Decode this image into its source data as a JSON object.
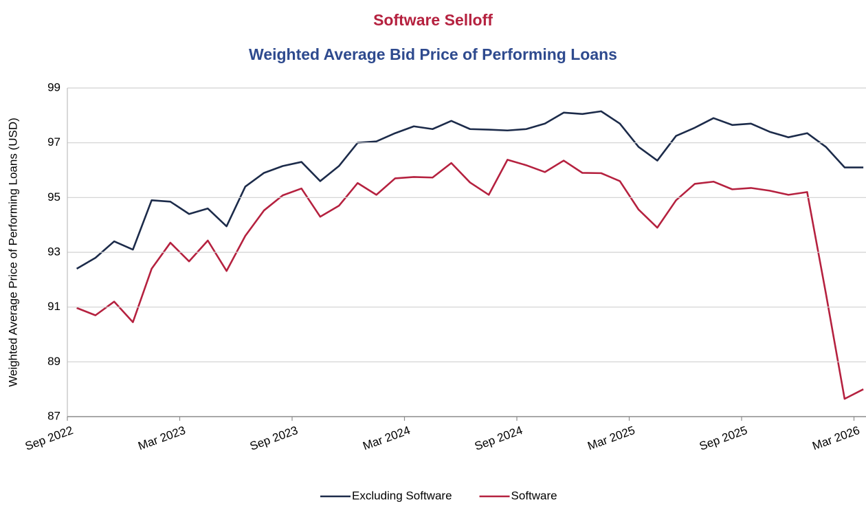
{
  "chart_data": {
    "type": "line",
    "title": "Software Selloff",
    "subtitle": "Weighted Average Bid Price of Performing Loans",
    "y_label": "Weighted Average Price of Performing Loans (USD)",
    "categories": [
      "Sep 2022",
      null,
      null,
      null,
      null,
      null,
      "Mar 2023",
      null,
      null,
      null,
      null,
      null,
      "Sep 2023",
      null,
      null,
      null,
      null,
      null,
      "Mar 2024",
      null,
      null,
      null,
      null,
      null,
      "Sep 2024",
      null,
      null,
      null,
      null,
      null,
      "Mar 2025",
      null,
      null,
      null,
      null,
      null,
      "Sep 2025",
      null,
      null,
      null,
      null,
      null,
      "Mar 2026"
    ],
    "series": [
      {
        "name": "Excluding Software",
        "color": "#1c2b4a",
        "values": [
          92.4,
          92.8,
          93.4,
          93.1,
          94.9,
          94.85,
          94.4,
          94.6,
          93.95,
          95.4,
          95.9,
          96.15,
          96.3,
          95.6,
          96.15,
          97.0,
          97.05,
          97.35,
          97.6,
          97.5,
          97.8,
          97.5,
          97.48,
          97.45,
          97.5,
          97.7,
          98.1,
          98.05,
          98.15,
          97.7,
          96.85,
          96.35,
          97.25,
          97.55,
          97.9,
          97.65,
          97.7,
          97.4,
          97.2,
          97.35,
          96.85,
          96.1,
          96.1
        ]
      },
      {
        "name": "Software",
        "color": "#b5213f",
        "values": [
          90.97,
          90.7,
          91.2,
          90.45,
          92.4,
          93.35,
          92.67,
          93.43,
          92.32,
          93.6,
          94.53,
          95.08,
          95.33,
          94.3,
          94.7,
          95.53,
          95.1,
          95.7,
          95.75,
          95.73,
          96.26,
          95.55,
          95.1,
          96.38,
          96.18,
          95.93,
          96.35,
          95.9,
          95.89,
          95.6,
          94.56,
          93.9,
          94.9,
          95.5,
          95.58,
          95.3,
          95.35,
          95.25,
          95.1,
          95.2,
          91.5,
          87.65,
          88.0
        ]
      }
    ],
    "ylim": [
      87,
      99
    ],
    "yticks": [
      87,
      89,
      91,
      93,
      95,
      97,
      99
    ],
    "grid": true,
    "legend": "bottom"
  }
}
